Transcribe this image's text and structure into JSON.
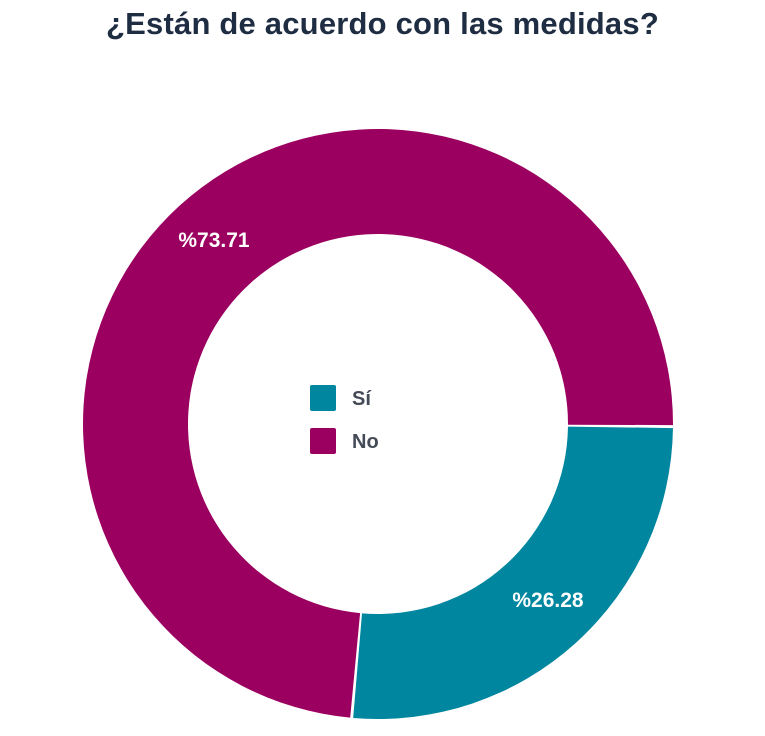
{
  "chart_data": {
    "type": "pie",
    "title": "¿Están de acuerdo con las medidas?",
    "categories": [
      "Sí",
      "No"
    ],
    "values": [
      26.28,
      73.71
    ],
    "labels": [
      "%26.28",
      "%73.71"
    ],
    "colors": [
      "#00869e",
      "#9b0060"
    ],
    "donut": true,
    "legend_position": "center"
  }
}
